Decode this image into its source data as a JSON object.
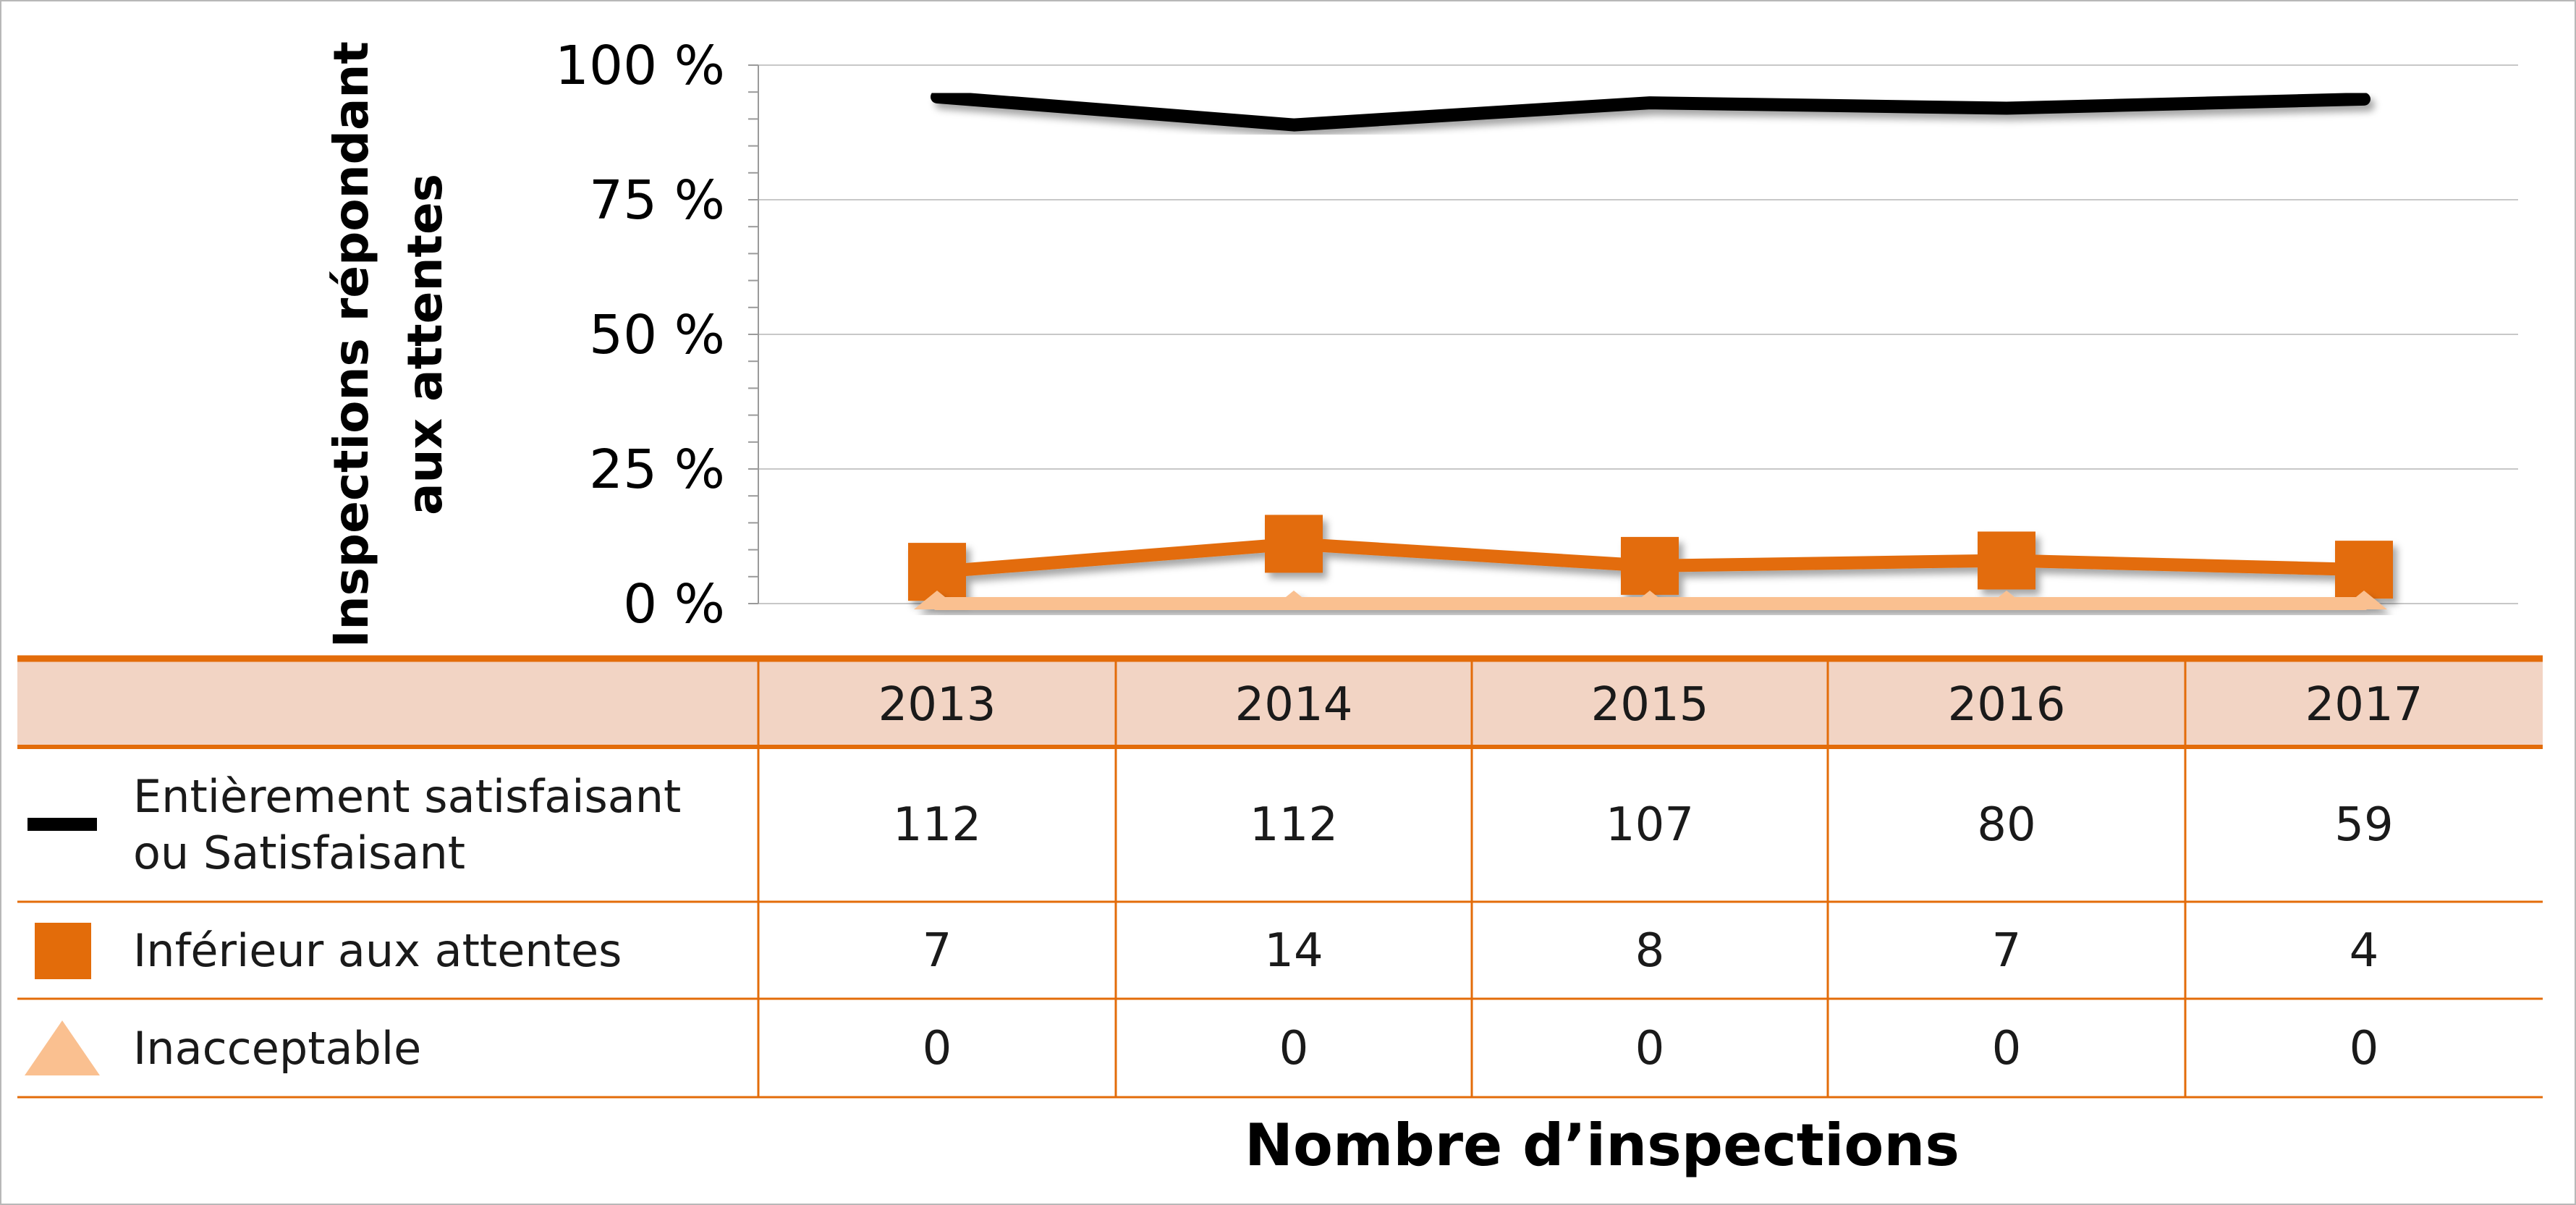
{
  "chart_data": {
    "type": "line",
    "title": "",
    "ylabel_lines": [
      "Inspections répondant",
      "aux attentes"
    ],
    "xlabel": "Nombre d’inspections",
    "ylim": [
      0,
      100
    ],
    "y_ticks": [
      "0 %",
      "25 %",
      "50 %",
      "75 %",
      "100 %"
    ],
    "y_tick_values": [
      0,
      25,
      50,
      75,
      100
    ],
    "grid": true,
    "legend_placement": "table-left",
    "categories": [
      "2013",
      "2014",
      "2015",
      "2016",
      "2017"
    ],
    "series": [
      {
        "name_lines": [
          "Entièrement satisfaisant",
          "ou Satisfaisant"
        ],
        "marker": "line",
        "color": "#000000",
        "percent_values": [
          94.1,
          88.9,
          93.0,
          92.0,
          93.7
        ],
        "counts": [
          "112",
          "112",
          "107",
          "80",
          "59"
        ]
      },
      {
        "name_lines": [
          "Inférieur aux attentes"
        ],
        "marker": "square",
        "color": "#E36C0A",
        "percent_values": [
          5.9,
          11.1,
          7.0,
          8.0,
          6.3
        ],
        "counts": [
          "7",
          "14",
          "8",
          "7",
          "4"
        ]
      },
      {
        "name_lines": [
          "Inacceptable"
        ],
        "marker": "triangle",
        "color": "#FAC090",
        "percent_values": [
          0,
          0,
          0,
          0,
          0
        ],
        "counts": [
          "0",
          "0",
          "0",
          "0",
          "0"
        ]
      }
    ]
  },
  "colors": {
    "table_header_bg": "#F2D4C4",
    "table_border": "#E36C0A",
    "gridline": "#c8c8c8",
    "page_border": "#b8b8b8"
  }
}
